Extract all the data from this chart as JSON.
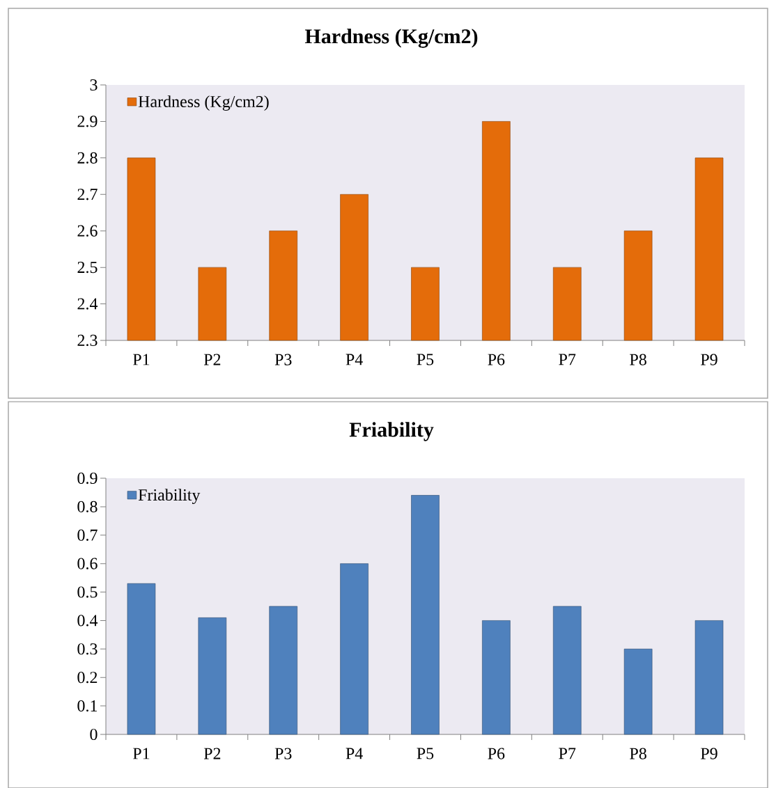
{
  "chart_data": [
    {
      "type": "bar",
      "title": "Hardness (Kg/cm2)",
      "categories": [
        "P1",
        "P2",
        "P3",
        "P4",
        "P5",
        "P6",
        "P7",
        "P8",
        "P9"
      ],
      "series": [
        {
          "name": "Hardness (Kg/cm2)",
          "color": "#e46c0a",
          "values": [
            2.8,
            2.5,
            2.6,
            2.7,
            2.5,
            2.9,
            2.5,
            2.6,
            2.8
          ]
        }
      ],
      "ylim": [
        2.3,
        3
      ],
      "yticks": [
        2.3,
        2.4,
        2.5,
        2.6,
        2.7,
        2.8,
        2.9,
        3
      ],
      "legend": "top left"
    },
    {
      "type": "bar",
      "title": "Friability",
      "categories": [
        "P1",
        "P2",
        "P3",
        "P4",
        "P5",
        "P6",
        "P7",
        "P8",
        "P9"
      ],
      "series": [
        {
          "name": "Friability",
          "color": "#4f81bd",
          "values": [
            0.53,
            0.41,
            0.45,
            0.6,
            0.84,
            0.4,
            0.45,
            0.3,
            0.4
          ]
        }
      ],
      "ylim": [
        0,
        0.9
      ],
      "yticks": [
        0,
        0.1,
        0.2,
        0.3,
        0.4,
        0.5,
        0.6,
        0.7,
        0.8,
        0.9
      ],
      "legend": "top left"
    }
  ]
}
